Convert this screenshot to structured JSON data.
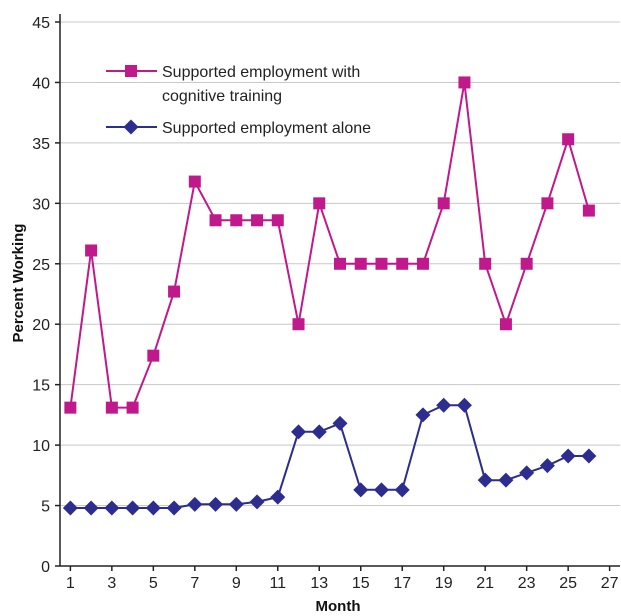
{
  "chart_data": {
    "type": "line",
    "title": "",
    "xlabel": "Month",
    "ylabel": "Percent Working",
    "xlim": [
      0.5,
      27.5
    ],
    "ylim": [
      0,
      45
    ],
    "x_ticks": [
      "1",
      "3",
      "5",
      "7",
      "9",
      "11",
      "13",
      "15",
      "17",
      "19",
      "21",
      "23",
      "25",
      "27"
    ],
    "y_ticks": [
      "0",
      "5",
      "10",
      "15",
      "20",
      "25",
      "30",
      "35",
      "40",
      "45"
    ],
    "grid": "horizontal",
    "legend_position": "top-left",
    "series": [
      {
        "name": "Supported employment with cognitive training",
        "name_lines": [
          "Supported employment with",
          "cognitive training"
        ],
        "color": "#c0198c",
        "marker": "square",
        "x": [
          1,
          2,
          3,
          4,
          5,
          6,
          7,
          8,
          9,
          10,
          11,
          12,
          13,
          14,
          15,
          16,
          17,
          18,
          19,
          20,
          21,
          22,
          23,
          24,
          25,
          26
        ],
        "values": [
          13.1,
          26.1,
          13.1,
          13.1,
          17.4,
          22.7,
          31.8,
          28.6,
          28.6,
          28.6,
          28.6,
          20.0,
          30.0,
          25.0,
          25.0,
          25.0,
          25.0,
          25.0,
          30.0,
          40.0,
          25.0,
          20.0,
          25.0,
          30.0,
          35.3,
          29.4
        ]
      },
      {
        "name": "Supported employment alone",
        "name_lines": [
          "Supported employment alone"
        ],
        "color": "#2b2d8f",
        "marker": "diamond",
        "x": [
          1,
          2,
          3,
          4,
          5,
          6,
          7,
          8,
          9,
          10,
          11,
          12,
          13,
          14,
          15,
          16,
          17,
          18,
          19,
          20,
          21,
          22,
          23,
          24,
          25,
          26
        ],
        "values": [
          4.8,
          4.8,
          4.8,
          4.8,
          4.8,
          4.8,
          5.1,
          5.1,
          5.1,
          5.3,
          5.7,
          11.1,
          11.1,
          11.8,
          6.3,
          6.3,
          6.3,
          12.5,
          13.3,
          13.3,
          7.1,
          7.1,
          7.7,
          8.3,
          9.1,
          9.1
        ]
      }
    ]
  }
}
